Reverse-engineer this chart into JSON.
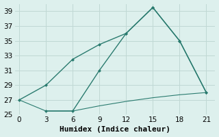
{
  "line1_x": [
    0,
    3,
    6,
    9,
    12,
    15,
    18,
    21
  ],
  "line1_y": [
    27.0,
    29.0,
    32.5,
    34.5,
    36.0,
    39.5,
    35.0,
    28.0
  ],
  "line2_x": [
    3,
    6,
    9,
    12,
    15,
    18,
    21
  ],
  "line2_y": [
    25.5,
    25.5,
    31.0,
    36.0,
    39.5,
    35.0,
    28.0
  ],
  "line3_x": [
    0,
    3,
    6,
    9,
    12,
    15,
    18,
    21
  ],
  "line3_y": [
    27.0,
    25.5,
    25.5,
    26.2,
    26.8,
    27.3,
    27.7,
    28.0
  ],
  "line_color": "#2a7b6f",
  "bg_color": "#ddf0ed",
  "grid_color": "#c0d8d4",
  "xlabel": "Humidex (Indice chaleur)",
  "xlim": [
    -0.5,
    22
  ],
  "ylim": [
    25,
    40
  ],
  "xticks": [
    0,
    3,
    6,
    9,
    12,
    15,
    18,
    21
  ],
  "yticks": [
    25,
    27,
    29,
    31,
    33,
    35,
    37,
    39
  ],
  "xlabel_fontsize": 8,
  "tick_fontsize": 7.5
}
